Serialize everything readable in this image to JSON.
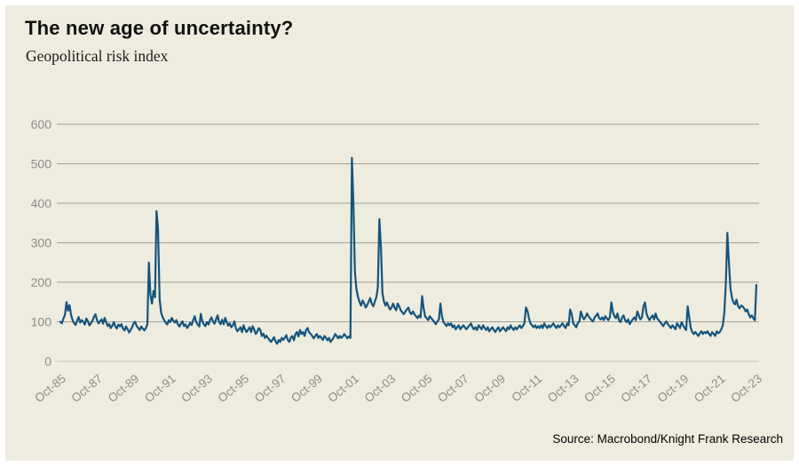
{
  "header": {
    "title": "The new age of uncertainty?",
    "subtitle": "Geopolitical risk index"
  },
  "footer": {
    "source": "Source: Macrobond/Knight Frank Research"
  },
  "colors": {
    "background": "#edecdf",
    "frame": "#ffffff",
    "line": "#15547c",
    "grid": "#a3a29a",
    "grid_zero": "#c7c6ba",
    "tick_text": "#8d8d89",
    "title_text": "#111111"
  },
  "chart_data": {
    "type": "line",
    "title": "The new age of uncertainty?",
    "subtitle": "Geopolitical risk index",
    "xlabel": "",
    "ylabel": "",
    "ylim": [
      0,
      600
    ],
    "y_ticks": [
      0,
      100,
      200,
      300,
      400,
      500,
      600
    ],
    "grid": "horizontal",
    "legend": "none",
    "frequency": "monthly",
    "x_start": "Oct-85",
    "x_end": "Oct-23",
    "x_tick_every_months": 24,
    "x_tick_labels": [
      "Oct-85",
      "Oct-87",
      "Oct-89",
      "Oct-91",
      "Oct-93",
      "Oct-95",
      "Oct-97",
      "Oct-99",
      "Oct-01",
      "Oct-03",
      "Oct-05",
      "Oct-07",
      "Oct-09",
      "Oct-11",
      "Oct-13",
      "Oct-15",
      "Oct-17",
      "Oct-19",
      "Oct-21",
      "Oct-23"
    ],
    "annotated_peaks": [
      {
        "x": "Aug-90",
        "value": 250
      },
      {
        "x": "Jan-91",
        "value": 380
      },
      {
        "x": "Sep-01",
        "value": 515
      },
      {
        "x": "Mar-03",
        "value": 360
      },
      {
        "x": "Mar-22",
        "value": 325
      },
      {
        "x": "Oct-23",
        "value": 193
      }
    ],
    "series": [
      {
        "name": "Geopolitical risk index",
        "values": [
          100,
          96,
          108,
          118,
          150,
          128,
          142,
          118,
          104,
          96,
          92,
          103,
          112,
          98,
          104,
          100,
          93,
          108,
          102,
          91,
          96,
          103,
          112,
          119,
          104,
          96,
          101,
          106,
          95,
          110,
          99,
          89,
          94,
          84,
          90,
          99,
          88,
          83,
          93,
          88,
          94,
          83,
          78,
          88,
          82,
          73,
          79,
          86,
          96,
          100,
          89,
          84,
          79,
          88,
          83,
          78,
          84,
          93,
          250,
          168,
          146,
          178,
          162,
          380,
          335,
          158,
          123,
          112,
          104,
          98,
          93,
          104,
          99,
          110,
          103,
          98,
          104,
          93,
          88,
          95,
          101,
          89,
          93,
          84,
          89,
          97,
          92,
          104,
          114,
          99,
          93,
          88,
          120,
          101,
          94,
          89,
          99,
          93,
          104,
          111,
          101,
          95,
          106,
          116,
          100,
          94,
          105,
          94,
          110,
          99,
          90,
          96,
          86,
          91,
          101,
          84,
          76,
          81,
          86,
          74,
          91,
          81,
          74,
          80,
          86,
          74,
          89,
          80,
          69,
          75,
          84,
          79,
          64,
          70,
          59,
          65,
          59,
          54,
          49,
          55,
          61,
          50,
          44,
          54,
          49,
          59,
          54,
          59,
          66,
          54,
          49,
          60,
          64,
          53,
          69,
          74,
          63,
          79,
          69,
          74,
          64,
          79,
          84,
          73,
          69,
          64,
          58,
          64,
          69,
          59,
          64,
          59,
          54,
          64,
          59,
          53,
          59,
          49,
          54,
          60,
          69,
          64,
          58,
          64,
          59,
          63,
          69,
          64,
          58,
          63,
          59,
          515,
          400,
          225,
          182,
          163,
          150,
          141,
          154,
          147,
          136,
          142,
          151,
          160,
          146,
          139,
          151,
          162,
          186,
          360,
          288,
          172,
          151,
          141,
          149,
          139,
          131,
          136,
          146,
          136,
          129,
          146,
          139,
          129,
          124,
          119,
          126,
          131,
          136,
          124,
          119,
          126,
          119,
          114,
          109,
          116,
          111,
          165,
          134,
          114,
          109,
          104,
          114,
          109,
          104,
          99,
          94,
          101,
          106,
          146,
          114,
          99,
          94,
          89,
          96,
          91,
          96,
          86,
          91,
          81,
          86,
          91,
          81,
          86,
          91,
          86,
          81,
          86,
          91,
          96,
          86,
          81,
          86,
          79,
          91,
          86,
          81,
          91,
          84,
          79,
          86,
          76,
          81,
          86,
          79,
          74,
          81,
          86,
          76,
          81,
          86,
          81,
          76,
          86,
          81,
          91,
          84,
          79,
          86,
          81,
          86,
          91,
          84,
          89,
          96,
          136,
          128,
          109,
          96,
          91,
          86,
          91,
          84,
          89,
          84,
          91,
          84,
          96,
          89,
          84,
          91,
          86,
          91,
          96,
          89,
          84,
          91,
          86,
          91,
          96,
          89,
          84,
          96,
          91,
          131,
          119,
          96,
          91,
          86,
          96,
          101,
          126,
          114,
          106,
          111,
          121,
          114,
          109,
          104,
          101,
          111,
          116,
          121,
          109,
          106,
          111,
          104,
          114,
          109,
          104,
          111,
          149,
          124,
          114,
          109,
          121,
          104,
          99,
          111,
          116,
          104,
          99,
          106,
          94,
          101,
          106,
          111,
          104,
          126,
          116,
          106,
          111,
          139,
          149,
          121,
          111,
          104,
          111,
          116,
          106,
          121,
          109,
          104,
          99,
          94,
          89,
          96,
          101,
          94,
          89,
          84,
          91,
          86,
          81,
          96,
          91,
          84,
          99,
          91,
          84,
          79,
          139,
          111,
          84,
          74,
          69,
          74,
          69,
          64,
          71,
          76,
          69,
          74,
          71,
          76,
          69,
          64,
          74,
          69,
          64,
          76,
          71,
          74,
          81,
          91,
          124,
          199,
          325,
          248,
          184,
          161,
          149,
          144,
          156,
          139,
          134,
          141,
          139,
          134,
          126,
          131,
          119,
          111,
          116,
          109,
          104,
          193
        ]
      }
    ]
  }
}
